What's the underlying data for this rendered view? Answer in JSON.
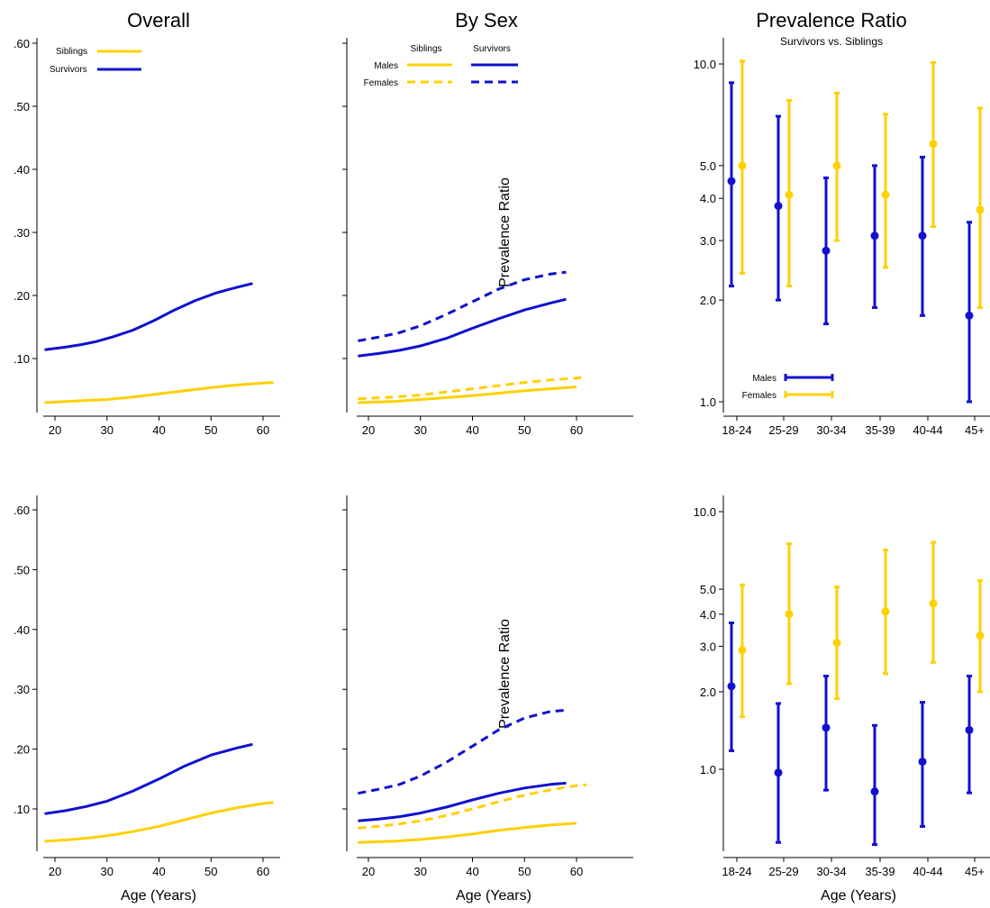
{
  "colors": {
    "siblings": "#FFD000",
    "survivors": "#1010D0"
  },
  "titles": {
    "overall": "Overall",
    "by_sex": "By Sex",
    "prevalence_ratio": "Prevalence Ratio",
    "prevalence_ratio_subtitle": "Survivors vs. Siblings"
  },
  "axis_labels": {
    "x_age": "Age (Years)",
    "panel_pr": "Prevalence Ratio"
  },
  "legends": {
    "overall": [
      "Siblings",
      "Survivors"
    ],
    "by_sex_cols": [
      "Siblings",
      "Survivors"
    ],
    "by_sex_rows": [
      "Males",
      "Females"
    ],
    "pr": [
      "Males",
      "Females"
    ]
  },
  "chart_data": [
    {
      "id": "top-overall",
      "type": "line",
      "title": "Overall",
      "xlim": [
        18,
        62
      ],
      "ylim": [
        0.03,
        0.61
      ],
      "xticks": [
        "20",
        "30",
        "40",
        "50",
        "60"
      ],
      "yticks": [
        ".10",
        ".20",
        ".30",
        ".40",
        ".50",
        ".60"
      ],
      "legend": "top-left",
      "series": [
        {
          "name": "Siblings",
          "color": "siblings",
          "style": "solid",
          "x": [
            18,
            25,
            30,
            35,
            40,
            45,
            50,
            55,
            60,
            62
          ],
          "y": [
            0.03,
            0.033,
            0.035,
            0.039,
            0.044,
            0.049,
            0.054,
            0.058,
            0.061,
            0.062
          ]
        },
        {
          "name": "Survivors",
          "color": "survivors",
          "style": "solid",
          "x": [
            18,
            22,
            25,
            28,
            31,
            35,
            39,
            43,
            47,
            51,
            55,
            58
          ],
          "y": [
            0.114,
            0.118,
            0.122,
            0.127,
            0.134,
            0.145,
            0.16,
            0.177,
            0.192,
            0.204,
            0.213,
            0.219
          ]
        }
      ]
    },
    {
      "id": "top-by-sex",
      "type": "line",
      "title": "By Sex",
      "xlim": [
        18,
        62
      ],
      "ylim": [
        0.03,
        0.61
      ],
      "xticks": [
        "20",
        "30",
        "40",
        "50",
        "60"
      ],
      "yticks": [
        ".10",
        ".20",
        ".30",
        ".40",
        ".50",
        ".60"
      ],
      "legend": "top-left",
      "series": [
        {
          "name": "Males",
          "group": "Siblings",
          "color": "siblings",
          "style": "solid",
          "x": [
            18,
            25,
            30,
            35,
            40,
            45,
            50,
            55,
            60
          ],
          "y": [
            0.03,
            0.032,
            0.035,
            0.038,
            0.041,
            0.045,
            0.049,
            0.052,
            0.055
          ]
        },
        {
          "name": "Females",
          "group": "Siblings",
          "color": "siblings",
          "style": "dash",
          "x": [
            18,
            25,
            30,
            35,
            40,
            45,
            50,
            55,
            60,
            62
          ],
          "y": [
            0.036,
            0.039,
            0.042,
            0.047,
            0.052,
            0.057,
            0.062,
            0.066,
            0.069,
            0.07
          ]
        },
        {
          "name": "Males",
          "group": "Survivors",
          "color": "survivors",
          "style": "solid",
          "x": [
            18,
            22,
            26,
            30,
            35,
            40,
            45,
            50,
            55,
            58
          ],
          "y": [
            0.104,
            0.108,
            0.113,
            0.12,
            0.132,
            0.148,
            0.163,
            0.177,
            0.188,
            0.194
          ]
        },
        {
          "name": "Females",
          "group": "Survivors",
          "color": "survivors",
          "style": "dash",
          "x": [
            18,
            22,
            26,
            30,
            35,
            40,
            45,
            50,
            55,
            58
          ],
          "y": [
            0.128,
            0.134,
            0.141,
            0.152,
            0.17,
            0.19,
            0.21,
            0.225,
            0.234,
            0.237
          ]
        }
      ]
    },
    {
      "id": "top-prevalence-ratio",
      "type": "errorbar",
      "title": "Prevalence Ratio",
      "subtitle": "Survivors vs. Siblings",
      "yscale": "log",
      "ylim": [
        0.95,
        10.6
      ],
      "categories": [
        "18-24",
        "25-29",
        "30-34",
        "35-39",
        "40-44",
        "45+"
      ],
      "yticks": [
        1.0,
        2.0,
        3.0,
        4.0,
        5.0,
        10.0
      ],
      "ytick_labels": [
        "1.0",
        "2.0",
        "3.0",
        "4.0",
        "5.0",
        "10.0"
      ],
      "legend": "bottom-left",
      "series": [
        {
          "name": "Males",
          "color": "survivors",
          "estimate": [
            4.5,
            3.8,
            2.8,
            3.1,
            3.1,
            1.8
          ],
          "lower": [
            2.2,
            2.0,
            1.7,
            1.9,
            1.8,
            1.0
          ],
          "upper": [
            8.8,
            7.0,
            4.6,
            5.0,
            5.3,
            3.4
          ]
        },
        {
          "name": "Females",
          "color": "siblings",
          "estimate": [
            5.0,
            4.1,
            5.0,
            4.1,
            5.8,
            3.7
          ],
          "lower": [
            2.4,
            2.2,
            3.0,
            2.5,
            3.3,
            1.9
          ],
          "upper": [
            10.2,
            7.8,
            8.2,
            7.1,
            10.1,
            7.4
          ]
        }
      ]
    },
    {
      "id": "bottom-overall",
      "type": "line",
      "xlim": [
        18,
        62
      ],
      "ylim": [
        0.03,
        0.61
      ],
      "xticks": [
        "20",
        "30",
        "40",
        "50",
        "60"
      ],
      "yticks": [
        ".10",
        ".20",
        ".30",
        ".40",
        ".50",
        ".60"
      ],
      "xlabel": "Age (Years)",
      "series": [
        {
          "name": "Siblings",
          "color": "siblings",
          "style": "solid",
          "x": [
            18,
            22,
            26,
            30,
            35,
            40,
            45,
            50,
            55,
            60,
            62
          ],
          "y": [
            0.046,
            0.048,
            0.051,
            0.055,
            0.062,
            0.071,
            0.082,
            0.093,
            0.102,
            0.109,
            0.111
          ]
        },
        {
          "name": "Survivors",
          "color": "survivors",
          "style": "solid",
          "x": [
            18,
            22,
            26,
            30,
            35,
            40,
            45,
            50,
            55,
            58
          ],
          "y": [
            0.092,
            0.097,
            0.104,
            0.113,
            0.13,
            0.15,
            0.172,
            0.19,
            0.202,
            0.208
          ]
        }
      ]
    },
    {
      "id": "bottom-by-sex",
      "type": "line",
      "xlim": [
        18,
        62
      ],
      "ylim": [
        0.03,
        0.61
      ],
      "xticks": [
        "20",
        "30",
        "40",
        "50",
        "60"
      ],
      "yticks": [
        ".10",
        ".20",
        ".30",
        ".40",
        ".50",
        ".60"
      ],
      "xlabel": "Age (Years)",
      "series": [
        {
          "name": "Males",
          "group": "Siblings",
          "color": "siblings",
          "style": "solid",
          "x": [
            18,
            25,
            30,
            35,
            40,
            45,
            50,
            55,
            60
          ],
          "y": [
            0.044,
            0.046,
            0.049,
            0.053,
            0.058,
            0.064,
            0.069,
            0.073,
            0.076
          ]
        },
        {
          "name": "Females",
          "group": "Siblings",
          "color": "siblings",
          "style": "dash",
          "x": [
            18,
            22,
            26,
            30,
            35,
            40,
            45,
            50,
            55,
            60,
            62
          ],
          "y": [
            0.068,
            0.071,
            0.075,
            0.08,
            0.089,
            0.1,
            0.112,
            0.123,
            0.132,
            0.139,
            0.14
          ]
        },
        {
          "name": "Males",
          "group": "Survivors",
          "color": "survivors",
          "style": "solid",
          "x": [
            18,
            22,
            26,
            30,
            35,
            40,
            45,
            50,
            55,
            58
          ],
          "y": [
            0.08,
            0.083,
            0.087,
            0.093,
            0.103,
            0.115,
            0.126,
            0.135,
            0.141,
            0.143
          ]
        },
        {
          "name": "Females",
          "group": "Survivors",
          "color": "survivors",
          "style": "dash",
          "x": [
            18,
            22,
            26,
            30,
            35,
            40,
            45,
            50,
            55,
            58
          ],
          "y": [
            0.126,
            0.133,
            0.141,
            0.155,
            0.178,
            0.205,
            0.232,
            0.252,
            0.263,
            0.265
          ]
        }
      ]
    },
    {
      "id": "bottom-prevalence-ratio",
      "type": "errorbar",
      "yscale": "log",
      "ylim": [
        0.5,
        10.6
      ],
      "categories": [
        "18-24",
        "25-29",
        "30-34",
        "35-39",
        "40-44",
        "45+"
      ],
      "yticks": [
        1.0,
        2.0,
        3.0,
        4.0,
        5.0,
        10.0
      ],
      "ytick_labels": [
        "1.0",
        "2.0",
        "3.0",
        "4.0",
        "5.0",
        "10.0"
      ],
      "xlabel": "Age (Years)",
      "series": [
        {
          "name": "Males",
          "color": "survivors",
          "estimate": [
            2.1,
            0.97,
            1.45,
            0.82,
            1.07,
            1.42
          ],
          "lower": [
            1.18,
            0.52,
            0.83,
            0.51,
            0.6,
            0.81
          ],
          "upper": [
            3.7,
            1.8,
            2.3,
            1.48,
            1.82,
            2.3
          ]
        },
        {
          "name": "Females",
          "color": "siblings",
          "estimate": [
            2.9,
            4.0,
            3.1,
            4.1,
            4.4,
            3.3
          ],
          "lower": [
            1.6,
            2.15,
            1.88,
            2.35,
            2.6,
            2.0
          ],
          "upper": [
            5.2,
            7.5,
            5.1,
            7.1,
            7.6,
            5.4
          ]
        }
      ]
    }
  ]
}
